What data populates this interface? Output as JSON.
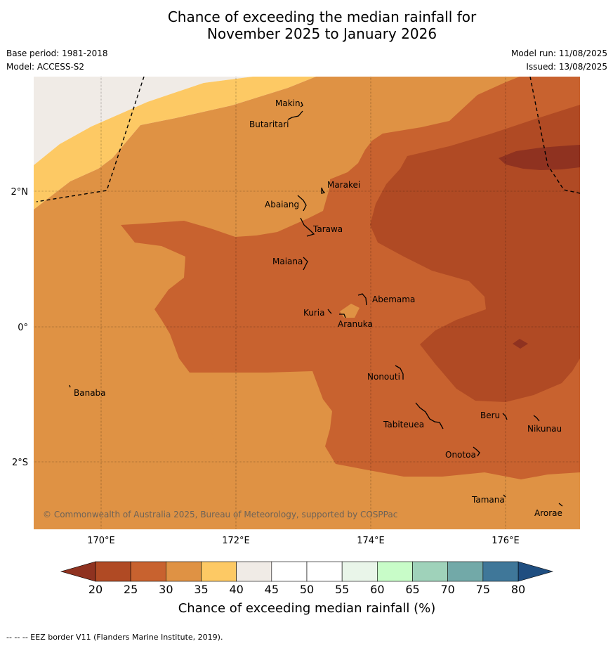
{
  "title_line1": "Chance of exceeding the median rainfall for",
  "title_line2": "November 2025 to January 2026",
  "meta": {
    "base_period": "Base period: 1981-2018",
    "model": "Model: ACCESS-S2",
    "model_run": "Model run: 11/08/2025",
    "issued": "Issued: 13/08/2025"
  },
  "map": {
    "lon_labels": [
      "170°E",
      "172°E",
      "174°E",
      "176°E"
    ],
    "lat_labels": [
      "2°N",
      "0°",
      "2°S"
    ],
    "copyright": "© Commonwealth of Australia 2025, Bureau of Meteorology, supported by COSPPac",
    "islands": [
      "Makin",
      "Butaritari",
      "Marakei",
      "Abaiang",
      "Tarawa",
      "Maiana",
      "Abemama",
      "Kuria",
      "Aranuka",
      "Nonouti",
      "Banaba",
      "Tabiteuea",
      "Beru",
      "Nikunau",
      "Onotoa",
      "Tamana",
      "Arorae"
    ],
    "band_colors": {
      "20-25": "#b04a24",
      "25-30": "#c8622f",
      "30-35": "#df9244",
      "35-40": "#fdc964",
      "40-45": "#f0ebe6",
      "45-55": "#ffffff",
      "below-20": "#8f3220"
    }
  },
  "colorbar": {
    "ticks": [
      "20",
      "25",
      "30",
      "35",
      "40",
      "45",
      "50",
      "55",
      "60",
      "65",
      "70",
      "75",
      "80"
    ],
    "colors": [
      "#b04a24",
      "#c8622f",
      "#df9244",
      "#fdc964",
      "#f0ebe6",
      "#ffffff",
      "#ffffff",
      "#e9f5e9",
      "#c8fcc8",
      "#9fd2ba",
      "#72a9a8",
      "#3f7799"
    ],
    "low_extend_color": "#8f3220",
    "high_extend_color": "#1f4e80",
    "label": "Chance of exceeding median rainfall (%)"
  },
  "footnote": "--  --  -- EEZ border V11 (Flanders Marine Institute, 2019)."
}
